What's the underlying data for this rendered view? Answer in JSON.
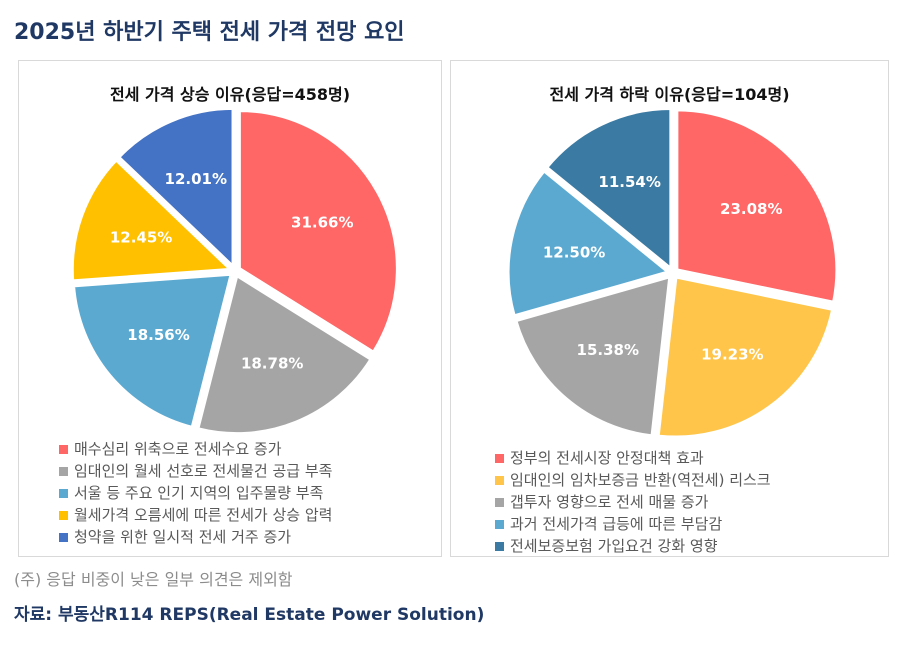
{
  "title": "2025년 하반기 주택 전세 가격 전망 요인",
  "note": "(주) 응답 비중이 낮은 일부 의견은 제외함",
  "source": "자료: 부동산R114 REPS(Real Estate Power Solution)",
  "chart_data": [
    {
      "type": "pie",
      "title": "전세 가격 상승 이유(응답=458명)",
      "labels": [
        "매수심리 위축으로 전세수요 증가",
        "임대인의 월세 선호로 전세물건 공급 부족",
        "서울 등 주요 인기 지역의 입주물량 부족",
        "월세가격 오름세에 따른 전세가 상승 압력",
        "청약을 위한 일시적 전세 거주 증가"
      ],
      "values": [
        31.66,
        18.78,
        18.56,
        12.45,
        12.01
      ],
      "value_labels": [
        "31.66%",
        "18.78%",
        "18.56%",
        "12.45%",
        "12.01%"
      ],
      "colors": [
        "#FF6666",
        "#A5A5A5",
        "#5BA9D0",
        "#FFC000",
        "#4472C4"
      ],
      "legend": "bottom"
    },
    {
      "type": "pie",
      "title": "전세 가격 하락 이유(응답=104명)",
      "labels": [
        "정부의 전세시장 안정대책 효과",
        "임대인의 임차보증금 반환(역전세) 리스크",
        "갭투자 영향으로 전세 매물 증가",
        "과거 전세가격 급등에 따른 부담감",
        "전세보증보험 가입요건 강화 영향"
      ],
      "values": [
        23.08,
        19.23,
        15.38,
        12.5,
        11.54
      ],
      "value_labels": [
        "23.08%",
        "19.23%",
        "15.38%",
        "12.50%",
        "11.54%"
      ],
      "colors": [
        "#FF6666",
        "#FFC54A",
        "#A5A5A5",
        "#5BA9D0",
        "#3A7AA3"
      ],
      "legend": "bottom"
    }
  ]
}
